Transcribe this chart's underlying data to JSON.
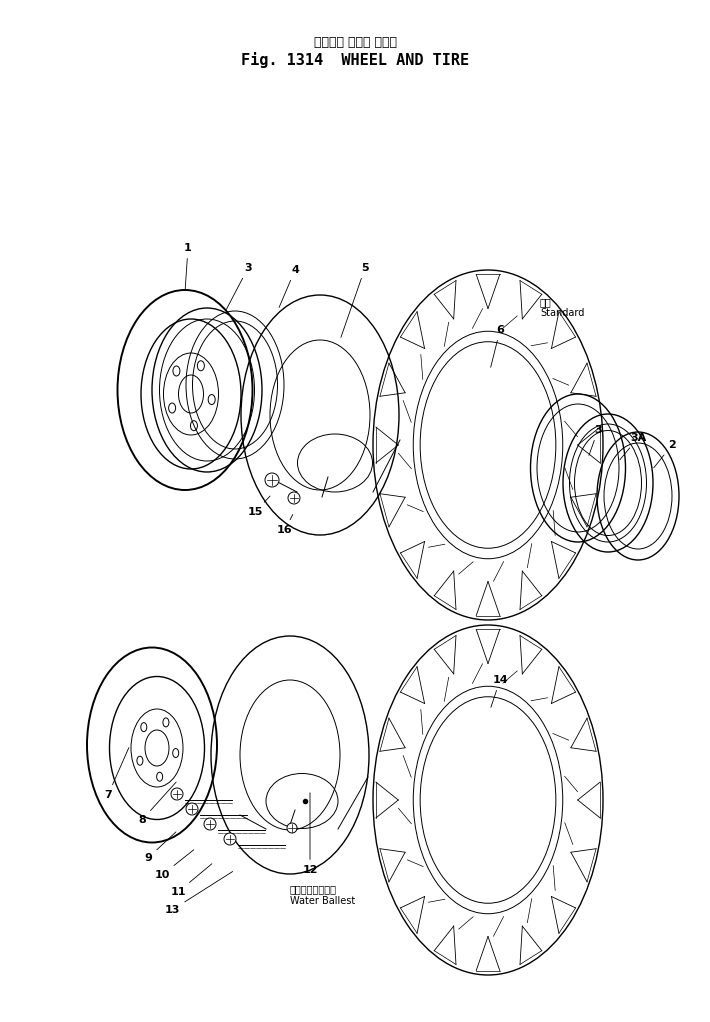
{
  "title_jp": "ホイール および タイヤ",
  "title_en": "Fig. 1314  WHEEL AND TIRE",
  "standard_jp": "標準",
  "standard_en": "Standard",
  "water_ballast_jp": "ウォータバラスト",
  "water_ballast_en": "Water Ballest",
  "bg_color": "#ffffff",
  "line_color": "#000000",
  "figsize": [
    7.1,
    10.22
  ],
  "dpi": 100
}
